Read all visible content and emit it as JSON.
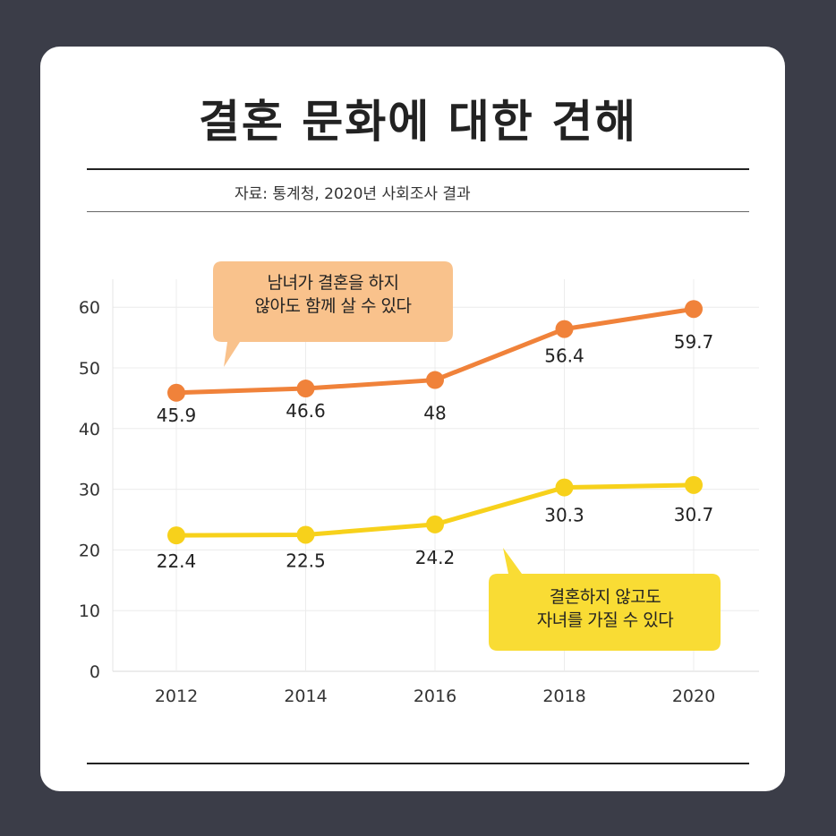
{
  "title": "결혼 문화에 대한 견해",
  "source": "자료: 통계청, 2020년 사회조사 결과",
  "colors": {
    "background": "#3b3d48",
    "card": "#ffffff",
    "orange": "#f0823a",
    "orange_bubble": "#f9c28c",
    "yellow": "#f7d11b",
    "yellow_bubble": "#f9dc34"
  },
  "chart_data": {
    "type": "line",
    "title": "결혼 문화에 대한 견해",
    "x": [
      "2012",
      "2014",
      "2016",
      "2018",
      "2020"
    ],
    "yticks": [
      0,
      10,
      20,
      30,
      40,
      50,
      60
    ],
    "ylim": [
      0,
      65
    ],
    "grid": true,
    "series": [
      {
        "name": "남녀가 결혼을 하지 않아도 함께 살 수 있다",
        "name_lines": [
          "남녀가 결혼을 하지",
          "않아도  함께 살 수 있다"
        ],
        "color": "#f0823a",
        "values": [
          45.9,
          46.6,
          48,
          56.4,
          59.7
        ],
        "labels": [
          "45.9",
          "46.6",
          "48",
          "56.4",
          "59.7"
        ]
      },
      {
        "name": "결혼하지 않고도 자녀를 가질 수 있다",
        "name_lines": [
          "결혼하지 않고도",
          "자녀를 가질 수 있다"
        ],
        "color": "#f7d11b",
        "values": [
          22.4,
          22.5,
          24.2,
          30.3,
          30.7
        ],
        "labels": [
          "22.4",
          "22.5",
          "24.2",
          "30.3",
          "30.7"
        ]
      }
    ]
  }
}
